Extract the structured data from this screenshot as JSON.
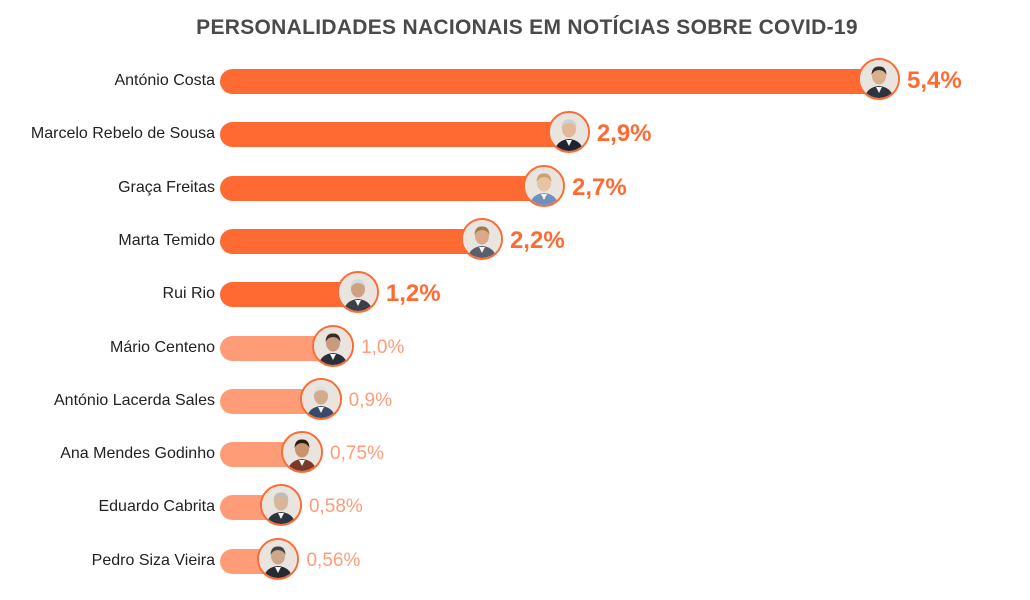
{
  "chart_data": {
    "type": "bar",
    "orientation": "horizontal",
    "title": "PERSONALIDADES NACIONAIS EM NOTÍCIAS SOBRE COVID-19",
    "xlabel": "",
    "ylabel": "",
    "grid": false,
    "unit": "%",
    "categories": [
      "António Costa",
      "Marcelo Rebelo de Sousa",
      "Graça Freitas",
      "Marta Temido",
      "Rui Rio",
      "Mário Centeno",
      "António Lacerda Sales",
      "Ana Mendes Godinho",
      "Eduardo Cabrita",
      "Pedro Siza Vieira"
    ],
    "values": [
      5.4,
      2.9,
      2.7,
      2.2,
      1.2,
      1.0,
      0.9,
      0.75,
      0.58,
      0.56
    ],
    "value_labels": [
      "5,4%",
      "2,9%",
      "2,7%",
      "2,2%",
      "1,2%",
      "1,0%",
      "0,9%",
      "0,75%",
      "0,58%",
      "0,56%"
    ],
    "xlim": [
      0,
      5.4
    ]
  },
  "colors": {
    "highlight": "#ff6a33",
    "muted": "#ff9c78",
    "title": "#4a4a4a",
    "label": "#222222"
  },
  "avatars": [
    "portrait-photo",
    "portrait-photo",
    "portrait-photo",
    "portrait-photo",
    "portrait-photo",
    "portrait-photo",
    "portrait-photo",
    "portrait-photo",
    "portrait-photo",
    "portrait-photo"
  ]
}
